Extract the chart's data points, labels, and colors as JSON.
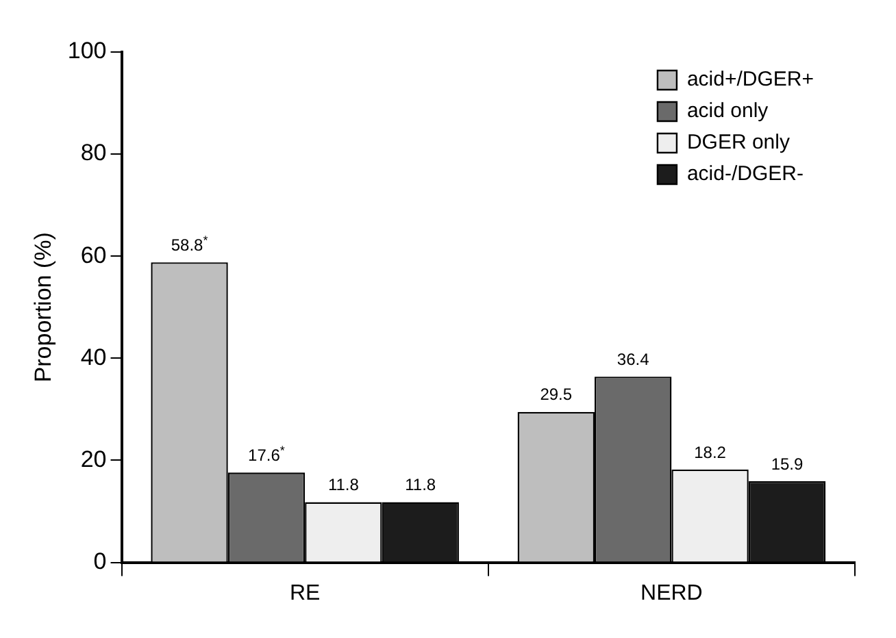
{
  "chart_data": {
    "type": "bar",
    "categories": [
      "RE",
      "NERD"
    ],
    "ylabel": "Proportion (%)",
    "ylim": [
      0,
      100
    ],
    "yticks": [
      0,
      20,
      40,
      60,
      80,
      100
    ],
    "grid": false,
    "legend": "top right",
    "series": [
      {
        "name": "acid+/DGER+",
        "color": "#bebebe",
        "values": [
          58.8,
          29.5
        ],
        "value_labels": [
          "58.8$^{*}$",
          "29.5"
        ]
      },
      {
        "name": "acid only",
        "color": "#6a6a6a",
        "values": [
          17.6,
          36.4
        ],
        "value_labels": [
          "17.6$^{*}$",
          "36.4"
        ]
      },
      {
        "name": "DGER only",
        "color": "#eeeeee",
        "values": [
          11.8,
          18.2
        ],
        "value_labels": [
          "11.8",
          "18.2"
        ]
      },
      {
        "name": "acid-/DGER-",
        "color": "#1c1c1c",
        "values": [
          11.8,
          15.9
        ],
        "value_labels": [
          "11.8",
          "15.9"
        ]
      }
    ]
  }
}
